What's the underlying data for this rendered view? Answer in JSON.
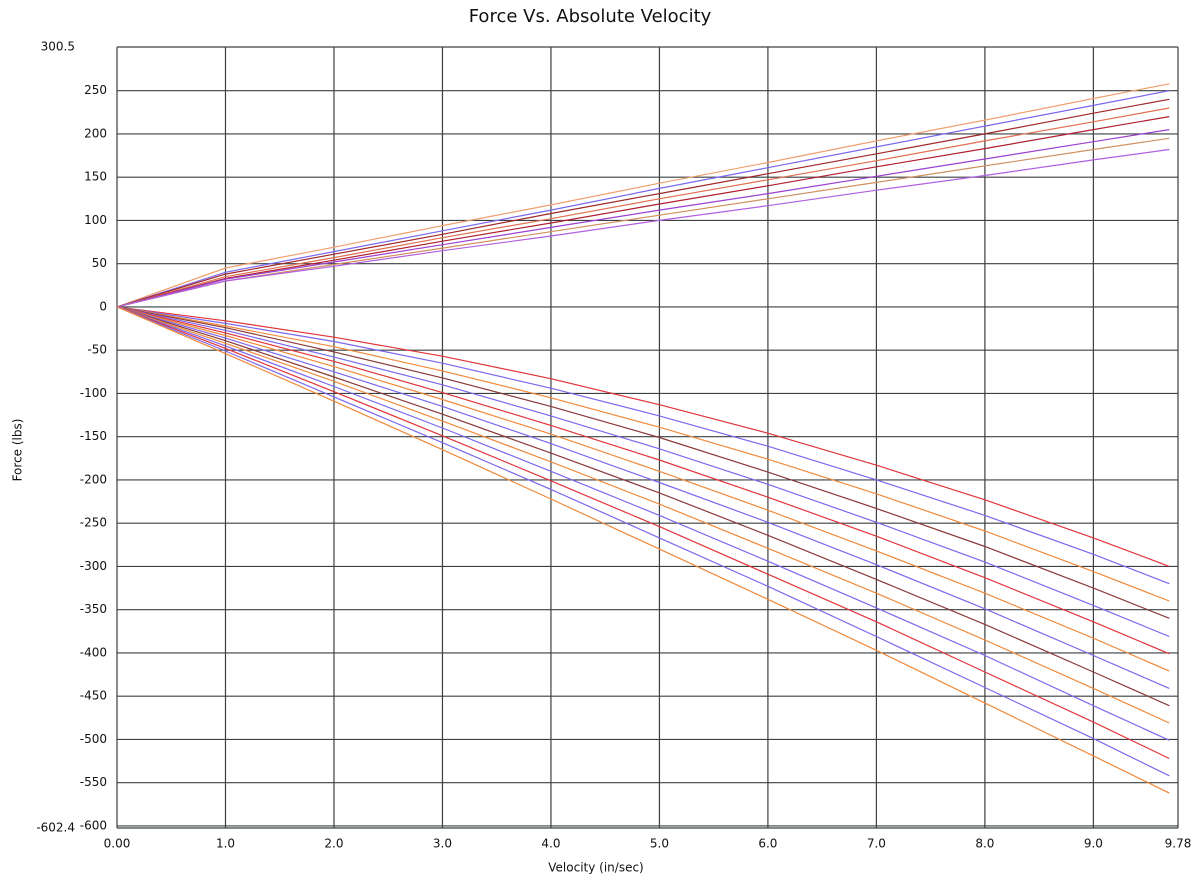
{
  "chart_data": {
    "type": "line",
    "title": "Force Vs. Absolute Velocity",
    "x_label": "Velocity (in/sec)",
    "y_label": "Force (lbs)",
    "xlim": [
      0,
      9.78
    ],
    "ylim": [
      -602.4,
      300.5
    ],
    "xticks": [
      {
        "value": 0,
        "label": "0.00"
      },
      {
        "value": 1,
        "label": "1.0"
      },
      {
        "value": 2,
        "label": "2.0"
      },
      {
        "value": 3,
        "label": "3.0"
      },
      {
        "value": 4,
        "label": "4.0"
      },
      {
        "value": 5,
        "label": "5.0"
      },
      {
        "value": 6,
        "label": "6.0"
      },
      {
        "value": 7,
        "label": "7.0"
      },
      {
        "value": 8,
        "label": "8.0"
      },
      {
        "value": 9,
        "label": "9.0"
      },
      9.78
    ],
    "yticks": [
      300.5,
      250,
      200,
      150,
      100,
      50,
      0,
      -50,
      -100,
      -150,
      -200,
      -250,
      -300,
      -350,
      -400,
      -450,
      -500,
      -550,
      -600,
      -602.4
    ],
    "grid": true,
    "x": [
      0,
      1,
      2,
      3,
      4,
      5,
      6,
      7,
      8,
      9,
      9.7
    ],
    "series": [
      {
        "color": "#f0a070",
        "values": [
          0,
          45,
          69,
          94,
          118,
          143,
          167,
          192,
          216,
          241,
          258
        ]
      },
      {
        "color": "#7b68ee",
        "values": [
          0,
          40,
          64,
          88,
          112,
          137,
          161,
          185,
          209,
          233,
          250
        ]
      },
      {
        "color": "#a0282a",
        "values": [
          0,
          38,
          61,
          84,
          108,
          131,
          154,
          177,
          200,
          224,
          240
        ]
      },
      {
        "color": "#e07050",
        "values": [
          0,
          35,
          57,
          80,
          102,
          125,
          147,
          169,
          192,
          214,
          230
        ]
      },
      {
        "color": "#b02030",
        "values": [
          0,
          33,
          54,
          76,
          97,
          119,
          140,
          162,
          183,
          205,
          220
        ]
      },
      {
        "color": "#9b40d0",
        "values": [
          0,
          32,
          52,
          72,
          92,
          112,
          131,
          151,
          171,
          191,
          205
        ]
      },
      {
        "color": "#d09060",
        "values": [
          0,
          30,
          49,
          68,
          87,
          106,
          125,
          144,
          163,
          182,
          195
        ]
      },
      {
        "color": "#b060e0",
        "values": [
          0,
          30,
          47,
          65,
          82,
          100,
          117,
          135,
          152,
          170,
          182
        ]
      },
      {
        "color": "#e0353a",
        "values": [
          0,
          -16,
          -35,
          -57,
          -83,
          -113,
          -146,
          -183,
          -223,
          -267,
          -300
        ]
      },
      {
        "color": "#7b68ee",
        "values": [
          0,
          -19,
          -40,
          -65,
          -94,
          -126,
          -161,
          -200,
          -241,
          -286,
          -320
        ]
      },
      {
        "color": "#f08a3c",
        "values": [
          0,
          -22,
          -46,
          -74,
          -105,
          -139,
          -176,
          -216,
          -259,
          -306,
          -340
        ]
      },
      {
        "color": "#8b3a3a",
        "values": [
          0,
          -24,
          -52,
          -82,
          -115,
          -151,
          -191,
          -233,
          -277,
          -325,
          -360
        ]
      },
      {
        "color": "#7b68ee",
        "values": [
          0,
          -27,
          -58,
          -90,
          -126,
          -164,
          -205,
          -249,
          -295,
          -345,
          -381
        ]
      },
      {
        "color": "#e0353a",
        "values": [
          0,
          -30,
          -63,
          -99,
          -137,
          -177,
          -220,
          -265,
          -313,
          -364,
          -401
        ]
      },
      {
        "color": "#f08a3c",
        "values": [
          0,
          -33,
          -69,
          -107,
          -147,
          -190,
          -235,
          -282,
          -331,
          -383,
          -421
        ]
      },
      {
        "color": "#7b68ee",
        "values": [
          0,
          -36,
          -75,
          -115,
          -158,
          -203,
          -249,
          -298,
          -349,
          -403,
          -441
        ]
      },
      {
        "color": "#8b3a3a",
        "values": [
          0,
          -39,
          -81,
          -124,
          -169,
          -215,
          -264,
          -315,
          -367,
          -422,
          -461
        ]
      },
      {
        "color": "#f08a3c",
        "values": [
          0,
          -42,
          -86,
          -132,
          -179,
          -228,
          -279,
          -331,
          -385,
          -441,
          -481
        ]
      },
      {
        "color": "#7b68ee",
        "values": [
          0,
          -45,
          -92,
          -140,
          -190,
          -241,
          -294,
          -348,
          -403,
          -461,
          -501
        ]
      },
      {
        "color": "#e0353a",
        "values": [
          0,
          -48,
          -98,
          -149,
          -201,
          -254,
          -309,
          -364,
          -422,
          -480,
          -522
        ]
      },
      {
        "color": "#7b68ee",
        "values": [
          0,
          -51,
          -104,
          -157,
          -211,
          -267,
          -323,
          -381,
          -440,
          -499,
          -542
        ]
      },
      {
        "color": "#f08a3c",
        "values": [
          0,
          -54,
          -109,
          -165,
          -222,
          -280,
          -338,
          -397,
          -458,
          -519,
          -562
        ]
      }
    ]
  }
}
